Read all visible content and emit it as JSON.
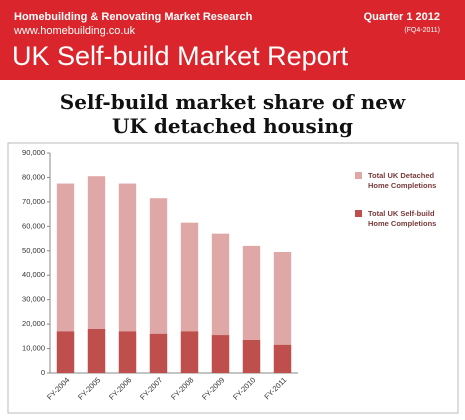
{
  "header": {
    "org": "Homebuilding & Renovating Market Research",
    "url": "www.homebuilding.co.uk",
    "quarter": "Quarter 1 2012",
    "period": "(FQ4-2011)",
    "report_title": "UK Self-build Market Report"
  },
  "chart_data": {
    "type": "bar",
    "title": "Self-build market share of new UK detached housing",
    "categories": [
      "FY-2004",
      "FY-2005",
      "FY-2006",
      "FY-2007",
      "FY-2008",
      "FY-2009",
      "FY-2010",
      "FY-2011"
    ],
    "series": [
      {
        "name": "Total UK Detached Home Completions",
        "color": "#dfa7a6",
        "values": [
          77500,
          80500,
          77500,
          71500,
          61500,
          57000,
          52000,
          49500
        ]
      },
      {
        "name": "Total UK Self-build Home Completions",
        "color": "#bf4f4c",
        "values": [
          17000,
          18000,
          17000,
          16000,
          17000,
          15500,
          13500,
          11500
        ]
      }
    ],
    "ylim": [
      0,
      90000
    ],
    "yticks": [
      0,
      {
        "value": 10000,
        "label": "10,000"
      },
      {
        "value": 20000,
        "label": "20,000"
      },
      {
        "value": 30000,
        "label": "30,000"
      },
      {
        "value": 40000,
        "label": "40,000"
      },
      {
        "value": 50000,
        "label": "50,000"
      },
      {
        "value": 60000,
        "label": "60,000"
      },
      {
        "value": 70000,
        "label": "70,000"
      },
      {
        "value": 80000,
        "label": "80,000"
      },
      {
        "value": 90000,
        "label": "90,000"
      }
    ],
    "grid": false
  }
}
